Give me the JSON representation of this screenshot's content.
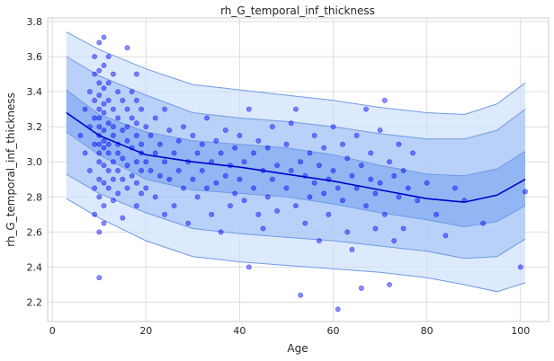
{
  "chart_data": {
    "type": "scatter",
    "title": "rh_G_temporal_inf_thickness",
    "xlabel": "Age",
    "ylabel": "rh_G_temporal_inf_thickness",
    "xlim": [
      -1,
      106
    ],
    "ylim": [
      2.09,
      3.82
    ],
    "xticks": [
      0,
      20,
      40,
      60,
      80,
      100
    ],
    "yticks": [
      2.2,
      2.4,
      2.6,
      2.8,
      3.0,
      3.2,
      3.4,
      3.6,
      3.8
    ],
    "grid": true,
    "colors": {
      "points": "#0000ff",
      "median": "#0000cd",
      "band_outer": "#cfe0fb",
      "band_middle": "#a9c6f7",
      "band_inner": "#86acf2",
      "band_edge": "#6f9ae8"
    },
    "curves": {
      "x": [
        3,
        10,
        20,
        30,
        40,
        50,
        60,
        70,
        80,
        88,
        95,
        101
      ],
      "median": [
        3.28,
        3.15,
        3.04,
        3.0,
        2.97,
        2.93,
        2.89,
        2.84,
        2.79,
        2.77,
        2.81,
        2.9
      ],
      "p25": [
        3.17,
        3.04,
        2.9,
        2.84,
        2.82,
        2.8,
        2.76,
        2.71,
        2.67,
        2.63,
        2.66,
        2.75
      ],
      "p75": [
        3.41,
        3.27,
        3.17,
        3.12,
        3.1,
        3.08,
        3.04,
        2.98,
        2.93,
        2.92,
        2.96,
        3.06
      ],
      "p05": [
        2.93,
        2.82,
        2.71,
        2.62,
        2.59,
        2.57,
        2.55,
        2.52,
        2.49,
        2.45,
        2.46,
        2.56
      ],
      "p95": [
        3.6,
        3.49,
        3.38,
        3.28,
        3.25,
        3.23,
        3.2,
        3.16,
        3.13,
        3.13,
        3.18,
        3.3
      ],
      "p01": [
        2.79,
        2.68,
        2.55,
        2.46,
        2.43,
        2.41,
        2.39,
        2.37,
        2.34,
        2.3,
        2.26,
        2.31
      ],
      "p99": [
        3.74,
        3.64,
        3.53,
        3.44,
        3.41,
        3.38,
        3.35,
        3.31,
        3.28,
        3.27,
        3.33,
        3.45
      ]
    },
    "series": [
      {
        "points": [
          [
            6,
            3.15
          ],
          [
            7,
            3.3
          ],
          [
            7,
            3.05
          ],
          [
            8,
            3.4
          ],
          [
            8,
            2.95
          ],
          [
            8,
            3.2
          ],
          [
            9,
            3.5
          ],
          [
            9,
            3.25
          ],
          [
            9,
            3.1
          ],
          [
            9,
            2.85
          ],
          [
            9,
            3.35
          ],
          [
            9,
            3.6
          ],
          [
            9,
            2.7
          ],
          [
            10,
            3.68
          ],
          [
            10,
            3.45
          ],
          [
            10,
            3.3
          ],
          [
            10,
            3.2
          ],
          [
            10,
            3.1
          ],
          [
            10,
            3.0
          ],
          [
            10,
            2.9
          ],
          [
            10,
            3.25
          ],
          [
            10,
            3.15
          ],
          [
            10,
            3.05
          ],
          [
            10,
            2.8
          ],
          [
            10,
            2.6
          ],
          [
            10,
            2.34
          ],
          [
            10,
            3.38
          ],
          [
            10,
            3.52
          ],
          [
            11,
            3.71
          ],
          [
            11,
            3.42
          ],
          [
            11,
            3.28
          ],
          [
            11,
            3.18
          ],
          [
            11,
            3.08
          ],
          [
            11,
            2.98
          ],
          [
            11,
            3.33
          ],
          [
            11,
            2.88
          ],
          [
            11,
            3.12
          ],
          [
            11,
            2.75
          ],
          [
            11,
            3.55
          ],
          [
            11,
            2.65
          ],
          [
            12,
            3.6
          ],
          [
            12,
            3.35
          ],
          [
            12,
            3.22
          ],
          [
            12,
            3.1
          ],
          [
            12,
            2.95
          ],
          [
            12,
            3.45
          ],
          [
            12,
            2.85
          ],
          [
            12,
            3.05
          ],
          [
            13,
            3.5
          ],
          [
            13,
            3.3
          ],
          [
            13,
            3.15
          ],
          [
            13,
            3.0
          ],
          [
            13,
            2.9
          ],
          [
            13,
            2.78
          ],
          [
            13,
            3.2
          ],
          [
            14,
            3.4
          ],
          [
            14,
            3.25
          ],
          [
            14,
            3.1
          ],
          [
            14,
            2.95
          ],
          [
            14,
            3.05
          ],
          [
            14,
            2.82
          ],
          [
            15,
            3.35
          ],
          [
            15,
            3.18
          ],
          [
            15,
            3.02
          ],
          [
            15,
            2.9
          ],
          [
            15,
            2.68
          ],
          [
            16,
            3.65
          ],
          [
            16,
            3.3
          ],
          [
            16,
            3.12
          ],
          [
            16,
            2.98
          ],
          [
            16,
            2.85
          ],
          [
            16,
            3.2
          ],
          [
            17,
            3.25
          ],
          [
            17,
            3.08
          ],
          [
            17,
            2.92
          ],
          [
            17,
            3.4
          ],
          [
            18,
            3.5
          ],
          [
            18,
            3.35
          ],
          [
            18,
            3.15
          ],
          [
            18,
            3.0
          ],
          [
            18,
            2.88
          ],
          [
            18,
            2.75
          ],
          [
            18,
            3.22
          ],
          [
            19,
            3.3
          ],
          [
            19,
            3.1
          ],
          [
            19,
            2.95
          ],
          [
            19,
            2.82
          ],
          [
            19,
            3.05
          ],
          [
            20,
            3.2
          ],
          [
            20,
            3.0
          ],
          [
            20,
            2.85
          ],
          [
            21,
            3.15
          ],
          [
            21,
            2.95
          ],
          [
            22,
            3.25
          ],
          [
            22,
            3.05
          ],
          [
            22,
            2.8
          ],
          [
            23,
            3.1
          ],
          [
            23,
            2.92
          ],
          [
            24,
            3.3
          ],
          [
            24,
            3.0
          ],
          [
            24,
            2.7
          ],
          [
            25,
            3.18
          ],
          [
            25,
            2.9
          ],
          [
            26,
            3.05
          ],
          [
            26,
            2.75
          ],
          [
            27,
            3.12
          ],
          [
            27,
            2.95
          ],
          [
            28,
            3.2
          ],
          [
            28,
            2.85
          ],
          [
            29,
            3.0
          ],
          [
            29,
            2.65
          ],
          [
            30,
            3.15
          ],
          [
            30,
            2.9
          ],
          [
            31,
            3.05
          ],
          [
            31,
            2.8
          ],
          [
            32,
            3.1
          ],
          [
            32,
            2.95
          ],
          [
            33,
            3.25
          ],
          [
            33,
            2.85
          ],
          [
            34,
            3.0
          ],
          [
            34,
            2.7
          ],
          [
            35,
            3.12
          ],
          [
            35,
            2.88
          ],
          [
            36,
            3.05
          ],
          [
            36,
            2.6
          ],
          [
            37,
            3.18
          ],
          [
            37,
            2.92
          ],
          [
            38,
            2.98
          ],
          [
            38,
            2.75
          ],
          [
            39,
            3.08
          ],
          [
            39,
            2.82
          ],
          [
            40,
            3.15
          ],
          [
            40,
            2.9
          ],
          [
            41,
            3.0
          ],
          [
            41,
            2.78
          ],
          [
            42,
            3.3
          ],
          [
            42,
            2.4
          ],
          [
            43,
            3.05
          ],
          [
            43,
            2.85
          ],
          [
            44,
            3.12
          ],
          [
            44,
            2.7
          ],
          [
            45,
            2.95
          ],
          [
            45,
            2.62
          ],
          [
            46,
            3.08
          ],
          [
            46,
            2.8
          ],
          [
            47,
            3.2
          ],
          [
            47,
            2.9
          ],
          [
            48,
            2.98
          ],
          [
            48,
            2.72
          ],
          [
            50,
            3.1
          ],
          [
            50,
            2.85
          ],
          [
            51,
            3.22
          ],
          [
            51,
            2.95
          ],
          [
            52,
            3.3
          ],
          [
            52,
            2.75
          ],
          [
            53,
            3.0
          ],
          [
            53,
            2.24
          ],
          [
            54,
            2.92
          ],
          [
            54,
            2.65
          ],
          [
            55,
            3.05
          ],
          [
            55,
            2.8
          ],
          [
            56,
            3.15
          ],
          [
            56,
            2.88
          ],
          [
            57,
            2.98
          ],
          [
            57,
            2.55
          ],
          [
            58,
            3.08
          ],
          [
            58,
            2.82
          ],
          [
            59,
            2.9
          ],
          [
            59,
            2.7
          ],
          [
            60,
            3.2
          ],
          [
            60,
            2.95
          ],
          [
            61,
            2.85
          ],
          [
            61,
            2.16
          ],
          [
            62,
            3.1
          ],
          [
            62,
            2.78
          ],
          [
            63,
            3.02
          ],
          [
            63,
            2.6
          ],
          [
            64,
            2.92
          ],
          [
            64,
            2.5
          ],
          [
            65,
            3.15
          ],
          [
            65,
            2.85
          ],
          [
            66,
            2.98
          ],
          [
            66,
            2.28
          ],
          [
            67,
            3.3
          ],
          [
            67,
            2.75
          ],
          [
            68,
            3.05
          ],
          [
            68,
            2.9
          ],
          [
            69,
            2.82
          ],
          [
            69,
            2.62
          ],
          [
            70,
            3.18
          ],
          [
            70,
            2.88
          ],
          [
            71,
            3.35
          ],
          [
            71,
            2.7
          ],
          [
            72,
            3.0
          ],
          [
            72,
            2.3
          ],
          [
            73,
            2.92
          ],
          [
            73,
            2.55
          ],
          [
            74,
            3.1
          ],
          [
            74,
            2.8
          ],
          [
            75,
            2.95
          ],
          [
            75,
            2.62
          ],
          [
            76,
            2.85
          ],
          [
            77,
            3.05
          ],
          [
            78,
            2.78
          ],
          [
            80,
            2.88
          ],
          [
            82,
            2.7
          ],
          [
            84,
            2.58
          ],
          [
            86,
            2.85
          ],
          [
            88,
            2.78
          ],
          [
            92,
            2.65
          ],
          [
            100,
            2.4
          ],
          [
            101,
            2.83
          ]
        ]
      }
    ]
  }
}
